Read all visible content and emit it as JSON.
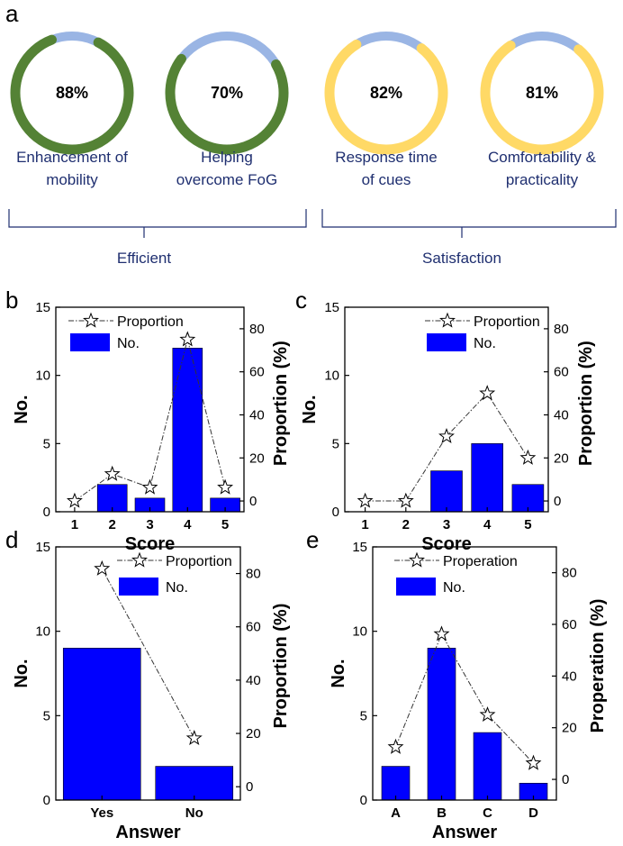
{
  "panel_letters": {
    "a": "a",
    "b": "b",
    "c": "c",
    "d": "d",
    "e": "e"
  },
  "colors": {
    "green": "#548235",
    "yellow": "#ffd966",
    "blue_light": "#9ab5e4",
    "bar": "#0000ff",
    "bracket": "#1f2f70"
  },
  "donuts": [
    {
      "value": 88,
      "label": "88%",
      "caption": [
        "Enhancement of",
        "mobility"
      ],
      "color": "#548235"
    },
    {
      "value": 70,
      "label": "70%",
      "caption": [
        "Helping",
        "overcome FoG"
      ],
      "color": "#548235"
    },
    {
      "value": 82,
      "label": "82%",
      "caption": [
        "Response time",
        "of cues"
      ],
      "color": "#ffd966"
    },
    {
      "value": 81,
      "label": "81%",
      "caption": [
        "Comfortability &",
        "practicality"
      ],
      "color": "#ffd966"
    }
  ],
  "groups": {
    "efficient": "Efficient",
    "satisfaction": "Satisfaction"
  },
  "chart_data": [
    {
      "panel": "b",
      "type": "bar",
      "categories": [
        "1",
        "2",
        "3",
        "4",
        "5"
      ],
      "series": [
        {
          "name": "No.",
          "type": "bar",
          "axis": "left",
          "values": [
            0,
            2,
            1,
            12,
            1
          ]
        },
        {
          "name": "Proportion",
          "type": "line",
          "axis": "right",
          "values": [
            0,
            12.5,
            6.25,
            75,
            6.25
          ]
        }
      ],
      "xlabel": "Score",
      "ylabel": "No.",
      "y2label": "Proportion (%)",
      "ylim": [
        0,
        15
      ],
      "y2lim": [
        -5,
        90
      ],
      "yticks": [
        0,
        5,
        10,
        15
      ],
      "y2ticks": [
        0,
        20,
        40,
        60,
        80
      ],
      "legend": [
        "Proportion",
        "No."
      ]
    },
    {
      "panel": "c",
      "type": "bar",
      "categories": [
        "1",
        "2",
        "3",
        "4",
        "5"
      ],
      "series": [
        {
          "name": "No.",
          "type": "bar",
          "axis": "left",
          "values": [
            0,
            0,
            3,
            5,
            2
          ]
        },
        {
          "name": "Proportion",
          "type": "line",
          "axis": "right",
          "values": [
            0,
            0,
            30,
            50,
            20
          ]
        }
      ],
      "xlabel": "Score",
      "ylabel": "No.",
      "y2label": "Proportion (%)",
      "ylim": [
        0,
        15
      ],
      "y2lim": [
        -5,
        90
      ],
      "yticks": [
        0,
        5,
        10,
        15
      ],
      "y2ticks": [
        0,
        20,
        40,
        60,
        80
      ],
      "legend": [
        "Proportion",
        "No."
      ]
    },
    {
      "panel": "d",
      "type": "bar",
      "categories": [
        "Yes",
        "No"
      ],
      "series": [
        {
          "name": "No.",
          "type": "bar",
          "axis": "left",
          "values": [
            9,
            2
          ]
        },
        {
          "name": "Proportion",
          "type": "line",
          "axis": "right",
          "values": [
            81.8,
            18.2
          ]
        }
      ],
      "xlabel": "Answer",
      "ylabel": "No.",
      "y2label": "Proportion (%)",
      "ylim": [
        0,
        15
      ],
      "y2lim": [
        -5,
        90
      ],
      "yticks": [
        0,
        5,
        10,
        15
      ],
      "y2ticks": [
        0,
        20,
        40,
        60,
        80
      ],
      "legend": [
        "Proportion",
        "No."
      ]
    },
    {
      "panel": "e",
      "type": "bar",
      "categories": [
        "A",
        "B",
        "C",
        "D"
      ],
      "series": [
        {
          "name": "No.",
          "type": "bar",
          "axis": "left",
          "values": [
            2,
            9,
            4,
            1
          ]
        },
        {
          "name": "Properation",
          "type": "line",
          "axis": "right",
          "values": [
            12.5,
            56.25,
            25,
            6.25
          ]
        }
      ],
      "xlabel": "Answer",
      "ylabel": "No.",
      "y2label": "Properation (%)",
      "ylim": [
        0,
        15
      ],
      "y2lim": [
        -8,
        90
      ],
      "yticks": [
        0,
        5,
        10,
        15
      ],
      "y2ticks": [
        0,
        20,
        40,
        60,
        80
      ],
      "legend": [
        "Properation",
        "No."
      ]
    }
  ]
}
